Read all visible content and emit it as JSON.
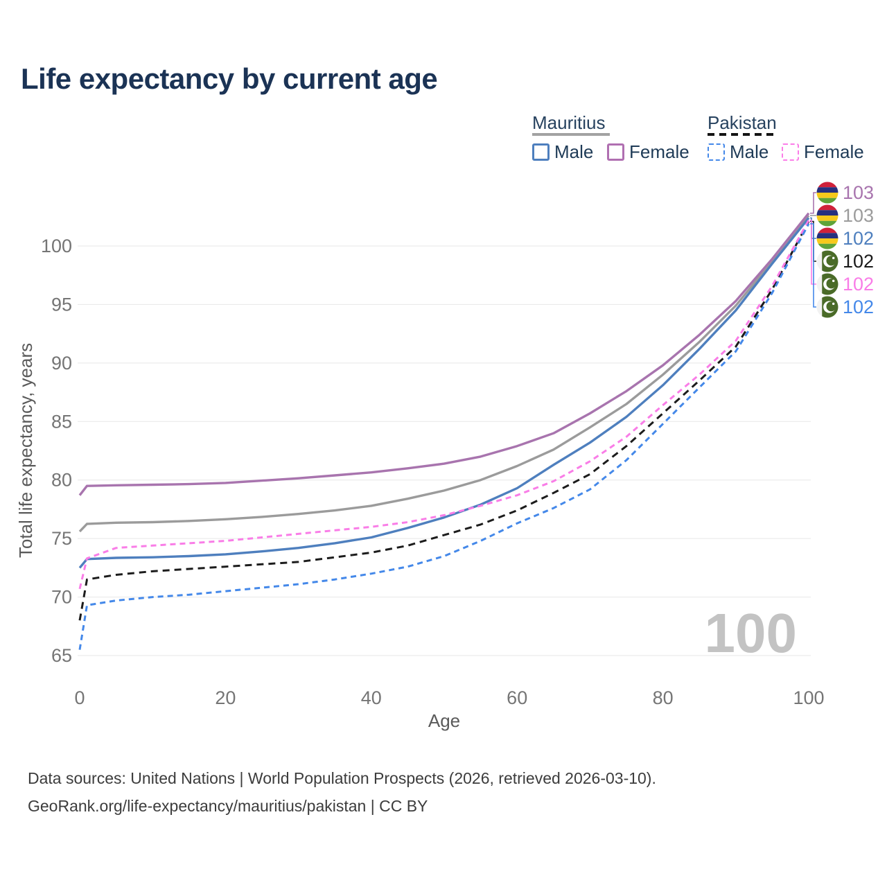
{
  "title": "Life expectancy by current age",
  "legend": {
    "groups": [
      {
        "name": "Mauritius",
        "line_style": "solid",
        "items": [
          {
            "label": "Male",
            "color": "#4e7fbe",
            "dashed": false
          },
          {
            "label": "Female",
            "color": "#b06fb1",
            "dashed": false
          }
        ]
      },
      {
        "name": "Pakistan",
        "line_style": "dashed",
        "items": [
          {
            "label": "Male",
            "color": "#4488e9",
            "dashed": true
          },
          {
            "label": "Female",
            "color": "#fb7de8",
            "dashed": true
          }
        ]
      }
    ]
  },
  "watermark_current_age": "100",
  "footer": {
    "line1": "Data sources: United Nations | World Population Prospects (2026, retrieved 2026-03-10).",
    "line2": "GeoRank.org/life-expectancy/mauritius/pakistan | CC BY"
  },
  "chart_data": {
    "type": "line",
    "title": "Life expectancy by current age",
    "xlabel": "Age",
    "ylabel": "Total life expectancy, years",
    "xlim": [
      0,
      100
    ],
    "ylim": [
      65,
      100
    ],
    "xticks": [
      0,
      20,
      40,
      60,
      80,
      100
    ],
    "yticks": [
      65,
      70,
      75,
      80,
      85,
      90,
      95,
      100
    ],
    "grid": "horizontal",
    "grid_color": "#e7e7e7",
    "tick_color": "#757575",
    "axis_title_color": "#5a5a5a",
    "watermark_color": "#c3c3c3",
    "ages": [
      0,
      1,
      5,
      10,
      15,
      20,
      25,
      30,
      35,
      40,
      45,
      50,
      55,
      60,
      65,
      70,
      75,
      80,
      85,
      90,
      95,
      100
    ],
    "series": [
      {
        "id": "mauritius-overall",
        "country": "Mauritius",
        "group": "Overall",
        "color": "#9b9b9b",
        "dash": null,
        "width": 3.4,
        "end_label": "103",
        "label_row": 1,
        "values": [
          75.6,
          76.25,
          76.35,
          76.4,
          76.5,
          76.65,
          76.85,
          77.1,
          77.4,
          77.8,
          78.4,
          79.1,
          80.0,
          81.2,
          82.6,
          84.5,
          86.5,
          89.0,
          91.8,
          94.9,
          98.7,
          102.6
        ]
      },
      {
        "id": "mauritius-female",
        "country": "Mauritius",
        "group": "Female",
        "color": "#a874ae",
        "dash": null,
        "width": 3.4,
        "end_label": "103",
        "label_row": 0,
        "values": [
          78.7,
          79.5,
          79.55,
          79.6,
          79.65,
          79.75,
          79.95,
          80.15,
          80.4,
          80.65,
          81.0,
          81.4,
          82.0,
          82.9,
          84.0,
          85.7,
          87.6,
          89.8,
          92.4,
          95.3,
          98.9,
          102.8
        ]
      },
      {
        "id": "mauritius-male",
        "country": "Mauritius",
        "group": "Male",
        "color": "#4e7fbe",
        "dash": null,
        "width": 3.4,
        "end_label": "102",
        "label_row": 2,
        "values": [
          72.5,
          73.25,
          73.35,
          73.4,
          73.5,
          73.65,
          73.9,
          74.2,
          74.6,
          75.1,
          75.9,
          76.8,
          77.9,
          79.3,
          81.3,
          83.2,
          85.4,
          88.1,
          91.2,
          94.5,
          98.5,
          102.4
        ]
      },
      {
        "id": "pakistan-overall",
        "country": "Pakistan",
        "group": "Overall",
        "color": "#1c1c1c",
        "dash": "10 7",
        "width": 3,
        "end_label": "102",
        "label_row": 3,
        "values": [
          68.0,
          71.5,
          71.9,
          72.2,
          72.4,
          72.6,
          72.8,
          73.0,
          73.4,
          73.8,
          74.4,
          75.3,
          76.2,
          77.4,
          78.9,
          80.5,
          82.9,
          85.7,
          88.5,
          91.4,
          96.3,
          102.1
        ]
      },
      {
        "id": "pakistan-female",
        "country": "Pakistan",
        "group": "Female",
        "color": "#f97de7",
        "dash": "8 6",
        "width": 3,
        "end_label": "102",
        "label_row": 4,
        "values": [
          70.7,
          73.3,
          74.2,
          74.4,
          74.6,
          74.8,
          75.1,
          75.4,
          75.7,
          76.0,
          76.4,
          77.0,
          77.8,
          78.7,
          79.9,
          81.6,
          83.7,
          86.4,
          89.0,
          91.9,
          96.6,
          102.2
        ]
      },
      {
        "id": "pakistan-male",
        "country": "Pakistan",
        "group": "Male",
        "color": "#4488e9",
        "dash": "8 6",
        "width": 3,
        "end_label": "102",
        "label_row": 5,
        "values": [
          65.5,
          69.3,
          69.7,
          70.0,
          70.2,
          70.5,
          70.8,
          71.1,
          71.5,
          72.0,
          72.6,
          73.5,
          74.8,
          76.3,
          77.6,
          79.2,
          81.7,
          84.8,
          87.9,
          91.0,
          96.0,
          101.9
        ]
      }
    ],
    "end_label_rows_y": [
      278,
      311,
      344,
      377,
      410,
      443
    ],
    "flag_colors": {
      "mauritius": [
        "#d0213a",
        "#27307e",
        "#f7c91c",
        "#5fa339"
      ],
      "pakistan_green": "#4a6b28",
      "pakistan_white": "#f2f2f2"
    }
  }
}
